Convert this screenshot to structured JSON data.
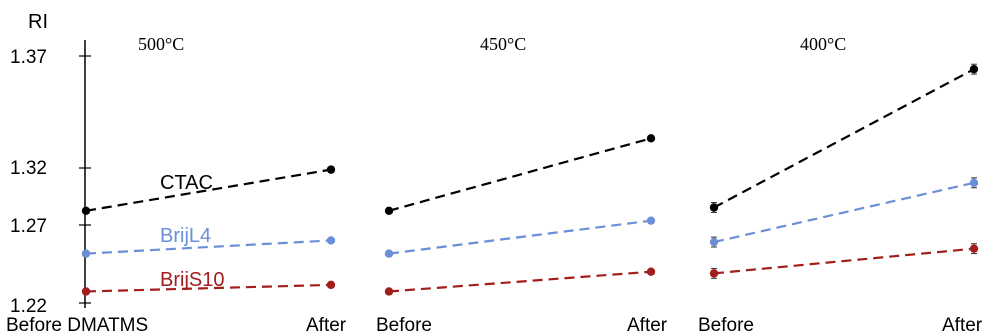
{
  "chart_data": {
    "type": "line",
    "ylabel": "RI",
    "ylim": [
      1.22,
      1.37
    ],
    "yticks": [
      "1.22",
      "1.27",
      "1.32",
      "1.37"
    ],
    "panels": [
      {
        "title": "500°C",
        "x_labels": [
          "Before DMATMS",
          "After"
        ]
      },
      {
        "title": "450°C",
        "x_labels": [
          "Before",
          "After"
        ]
      },
      {
        "title": "400°C",
        "x_labels": [
          "Before",
          "After"
        ]
      }
    ],
    "series": [
      {
        "name": "CTAC",
        "color": "#000000",
        "values": [
          [
            1.276,
            1.301
          ],
          [
            1.276,
            1.32
          ],
          [
            1.278,
            1.362
          ]
        ],
        "errors": [
          [
            0,
            0
          ],
          [
            0,
            0
          ],
          [
            0.003,
            0.003
          ]
        ]
      },
      {
        "name": "BrijL4",
        "color": "#6b8fd6",
        "values": [
          [
            1.25,
            1.258
          ],
          [
            1.25,
            1.27
          ],
          [
            1.257,
            1.293
          ]
        ],
        "errors": [
          [
            0,
            0
          ],
          [
            0,
            0
          ],
          [
            0.003,
            0.003
          ]
        ]
      },
      {
        "name": "BrijS10",
        "color": "#a31d1d",
        "values": [
          [
            1.227,
            1.231
          ],
          [
            1.227,
            1.239
          ],
          [
            1.238,
            1.253
          ]
        ],
        "errors": [
          [
            0,
            0
          ],
          [
            0,
            0
          ],
          [
            0.003,
            0.003
          ]
        ]
      }
    ],
    "grid": false
  }
}
